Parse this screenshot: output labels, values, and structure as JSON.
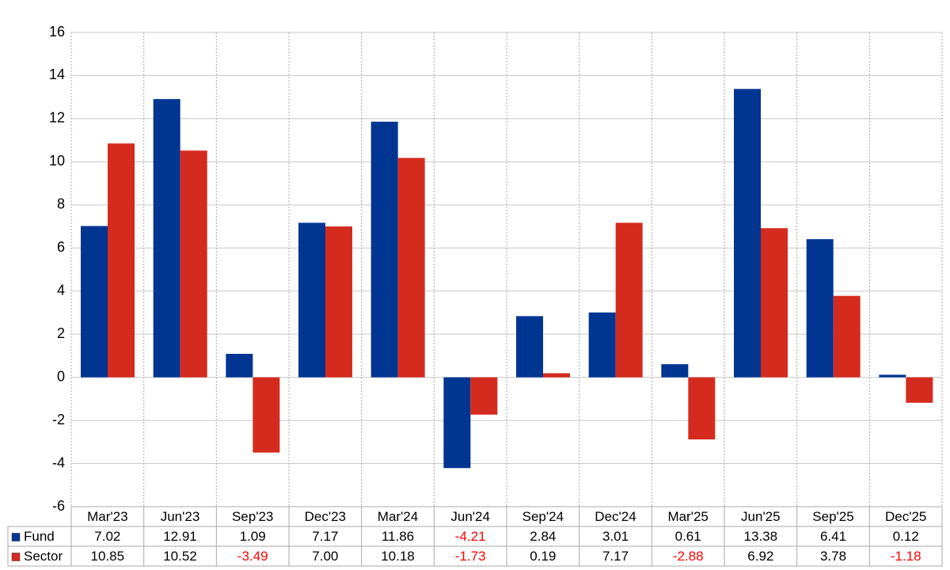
{
  "chart_data": {
    "type": "bar",
    "categories": [
      "Mar'23",
      "Jun'23",
      "Sep'23",
      "Dec'23",
      "Mar'24",
      "Jun'24",
      "Sep'24",
      "Dec'24",
      "Mar'25",
      "Jun'25",
      "Sep'25",
      "Dec'25"
    ],
    "series": [
      {
        "name": "Fund",
        "color": "#003591",
        "values": [
          7.02,
          12.91,
          1.09,
          7.17,
          11.86,
          -4.21,
          2.84,
          3.01,
          0.61,
          13.38,
          6.41,
          0.12
        ],
        "value_labels": [
          "7.02",
          "12.91",
          "1.09",
          "7.17",
          "11.86",
          "-4.21",
          "2.84",
          "3.01",
          "0.61",
          "13.38",
          "6.41",
          "0.12"
        ]
      },
      {
        "name": "Sector",
        "color": "#d52b1e",
        "values": [
          10.85,
          10.52,
          -3.49,
          7.0,
          10.18,
          -1.73,
          0.19,
          7.17,
          -2.88,
          6.92,
          3.78,
          -1.18
        ],
        "value_labels": [
          "10.85",
          "10.52",
          "-3.49",
          "7.00",
          "10.18",
          "-1.73",
          "0.19",
          "7.17",
          "-2.88",
          "6.92",
          "3.78",
          "-1.18"
        ]
      }
    ],
    "ylim": [
      -6,
      16
    ],
    "yticks": [
      -6,
      -4,
      -2,
      0,
      2,
      4,
      6,
      8,
      10,
      12,
      14,
      16
    ],
    "grid": true
  }
}
